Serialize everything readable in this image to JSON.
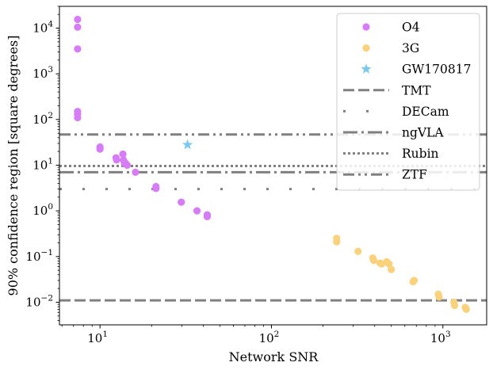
{
  "chart_data": {
    "type": "scatter",
    "title": "",
    "xlabel": "Network SNR",
    "ylabel": "90% confidence region [square degrees]",
    "xscale": "log",
    "yscale": "log",
    "xlim": [
      5.8,
      1800
    ],
    "ylim": [
      0.0032,
      30000
    ],
    "grid": false,
    "legend_position": "top-right",
    "x_ticks": [
      {
        "value": 10,
        "base": "10",
        "exp": "1"
      },
      {
        "value": 100,
        "base": "10",
        "exp": "2"
      },
      {
        "value": 1000,
        "base": "10",
        "exp": "3"
      }
    ],
    "y_ticks": [
      {
        "value": 0.01,
        "base": "10",
        "exp": "−2"
      },
      {
        "value": 0.1,
        "base": "10",
        "exp": "−1"
      },
      {
        "value": 1,
        "base": "10",
        "exp": "0"
      },
      {
        "value": 10,
        "base": "10",
        "exp": "1"
      },
      {
        "value": 100,
        "base": "10",
        "exp": "2"
      },
      {
        "value": 1000,
        "base": "10",
        "exp": "3"
      },
      {
        "value": 10000,
        "base": "10",
        "exp": "4"
      }
    ],
    "series": [
      {
        "name": "O4",
        "marker": "circle",
        "color": "#d67cf7",
        "x": [
          7.4,
          7.4,
          7.4,
          7.4,
          7.4,
          7.4,
          10.0,
          10.0,
          12.4,
          12.5,
          13.6,
          13.7,
          13.9,
          14.1,
          14.4,
          16.1,
          21.2,
          21.2,
          29.8,
          36.8,
          42.2,
          42.2
        ],
        "y": [
          15500,
          10500,
          3500,
          150,
          130,
          110,
          25,
          22.5,
          14.5,
          13,
          17.5,
          13,
          11,
          11,
          10,
          7,
          3.4,
          3.1,
          1.55,
          1.0,
          0.82,
          0.75
        ]
      },
      {
        "name": "3G",
        "marker": "circle",
        "color": "#fad27e",
        "x": [
          240,
          240,
          320,
          390,
          395,
          430,
          440,
          470,
          485,
          500,
          670,
          680,
          940,
          950,
          1160,
          1170,
          1350,
          1370
        ],
        "y": [
          0.25,
          0.21,
          0.13,
          0.093,
          0.082,
          0.072,
          0.069,
          0.077,
          0.069,
          0.052,
          0.028,
          0.03,
          0.015,
          0.013,
          0.01,
          0.0085,
          0.0077,
          0.007
        ]
      },
      {
        "name": "GW170817",
        "marker": "star",
        "color": "#7ec8f0",
        "x": [
          32.4
        ],
        "y": [
          28
        ]
      }
    ],
    "hlines": [
      {
        "name": "TMT",
        "y": 0.011,
        "style": "dashed",
        "color": "#808080"
      },
      {
        "name": "DECam",
        "y": 3.0,
        "style": "loosely-dashdotted",
        "color": "#808080"
      },
      {
        "name": "ngVLA",
        "y": 7.0,
        "style": "dashdot",
        "color": "#808080"
      },
      {
        "name": "Rubin",
        "y": 9.6,
        "style": "dotted",
        "color": "#808080"
      },
      {
        "name": "ZTF",
        "y": 47,
        "style": "dashdotdot",
        "color": "#808080"
      }
    ],
    "legend": [
      "O4",
      "3G",
      "GW170817",
      "TMT",
      "DECam",
      "ngVLA",
      "Rubin",
      "ZTF"
    ]
  }
}
